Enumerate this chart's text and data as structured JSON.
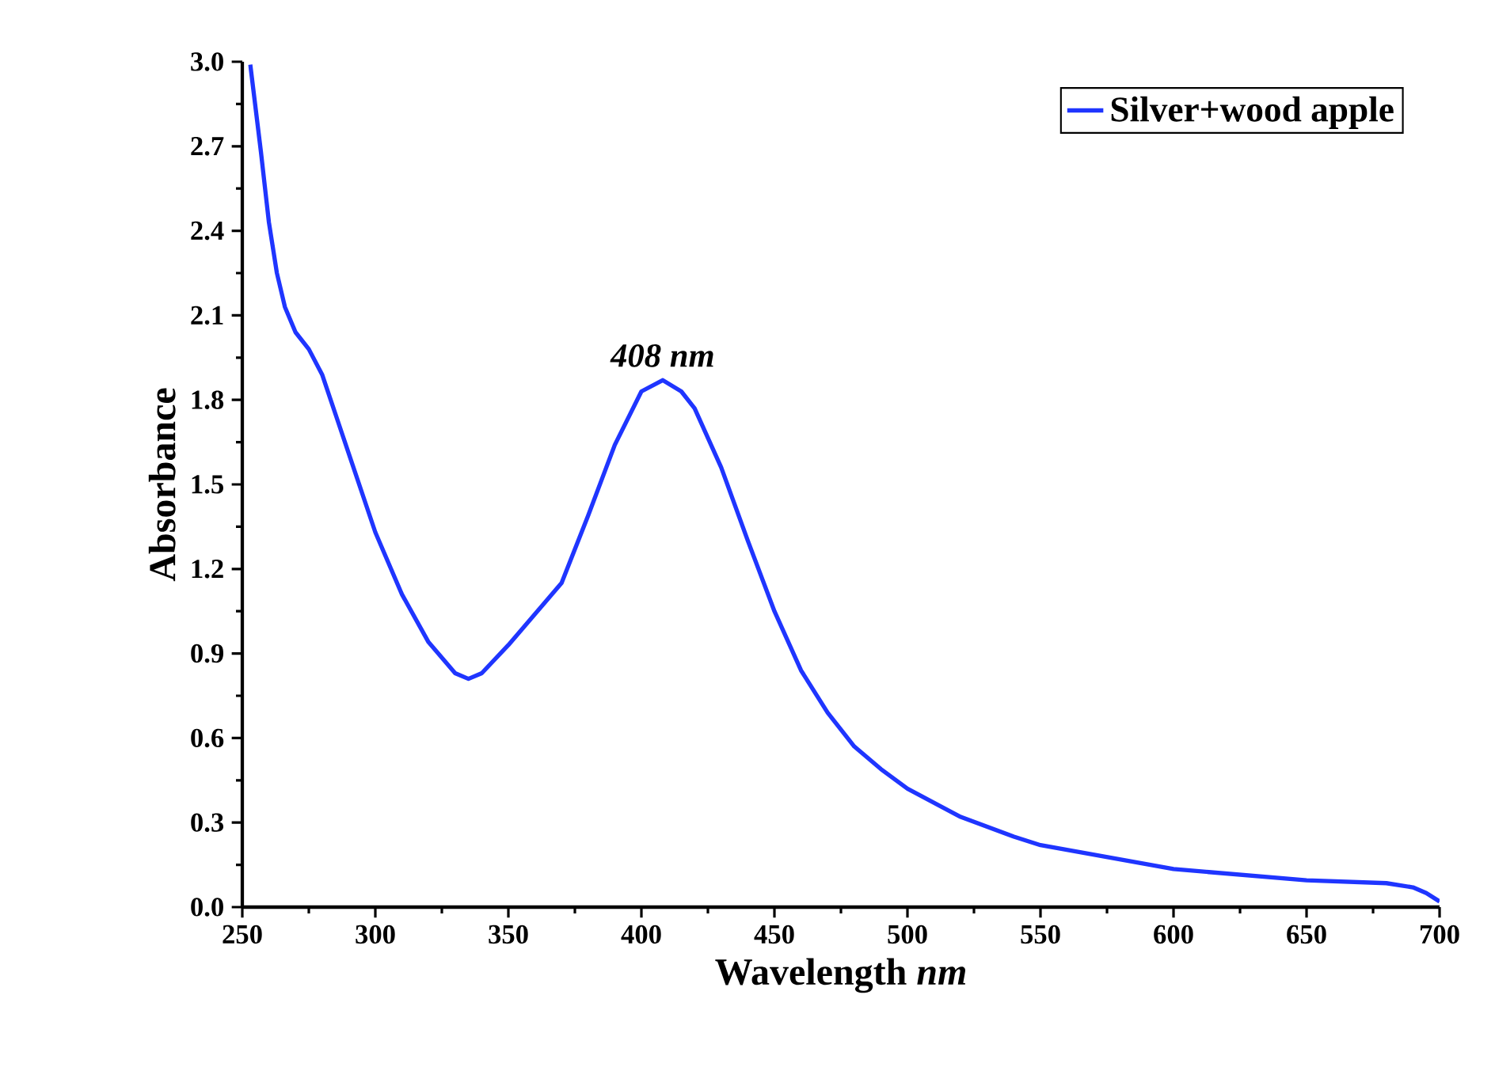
{
  "chart_data": {
    "type": "line",
    "xlabel": "Wavelength *nm*",
    "ylabel": "Absorbance",
    "x": [
      253,
      257,
      260,
      263,
      266,
      270,
      275,
      280,
      285,
      290,
      300,
      310,
      320,
      330,
      335,
      340,
      350,
      360,
      370,
      380,
      390,
      400,
      408,
      415,
      420,
      430,
      440,
      450,
      460,
      470,
      480,
      490,
      500,
      520,
      540,
      550,
      600,
      650,
      680,
      690,
      695,
      700
    ],
    "series": [
      {
        "name": "Silver+wood apple",
        "color": "#1f35ff",
        "values": [
          2.99,
          2.68,
          2.43,
          2.25,
          2.13,
          2.04,
          1.98,
          1.89,
          1.75,
          1.61,
          1.33,
          1.11,
          0.94,
          0.83,
          0.81,
          0.83,
          0.93,
          1.04,
          1.15,
          1.39,
          1.64,
          1.83,
          1.87,
          1.83,
          1.77,
          1.56,
          1.3,
          1.05,
          0.84,
          0.69,
          0.57,
          0.49,
          0.42,
          0.32,
          0.25,
          0.22,
          0.135,
          0.095,
          0.085,
          0.07,
          0.05,
          0.02
        ]
      }
    ],
    "xlim": [
      250,
      700
    ],
    "ylim": [
      0,
      3.0
    ],
    "xticks": [
      250,
      300,
      350,
      400,
      450,
      500,
      550,
      600,
      650,
      700
    ],
    "yticks": [
      {
        "value": 0,
        "label": "0.0"
      },
      0.3,
      0.6,
      0.9,
      1.2,
      1.5,
      1.8,
      2.1,
      2.4,
      2.7,
      {
        "value": 3,
        "label": "3.0"
      }
    ],
    "annotations": [
      {
        "text": "*408 nm*",
        "x": 408,
        "y": 1.87
      }
    ],
    "legend": "top right",
    "grid": false,
    "marker": "none",
    "line_style": "solid"
  }
}
